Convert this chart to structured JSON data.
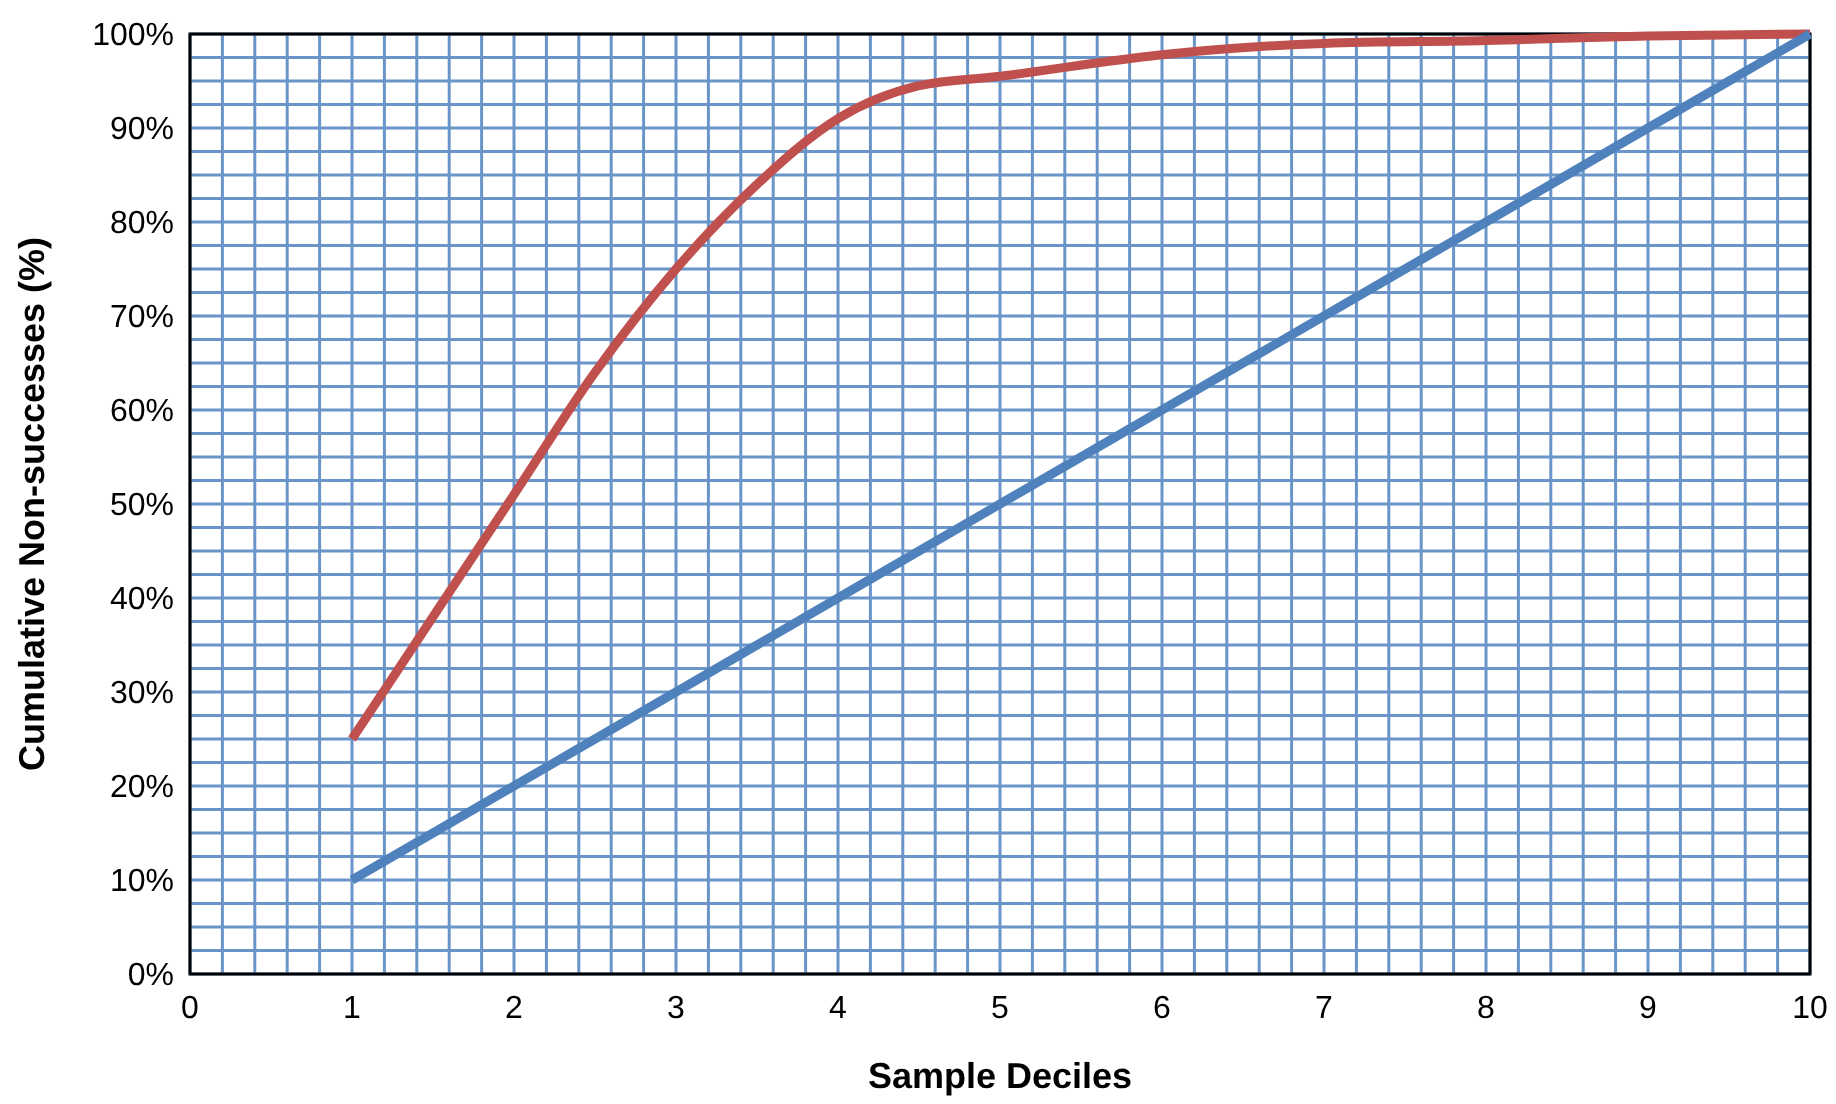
{
  "chart_data": {
    "type": "line",
    "xlabel": "Sample Deciles",
    "ylabel": "Cumulative Non-successes (%)",
    "xlim": [
      0,
      10
    ],
    "ylim": [
      0,
      100
    ],
    "xticks": [
      0,
      {
        "value": 0.2,
        "label": null
      },
      {
        "value": 0.4,
        "label": null
      },
      {
        "value": 0.6,
        "label": null
      },
      {
        "value": 0.8,
        "label": null
      },
      1,
      {
        "value": 1.2,
        "label": null
      },
      {
        "value": 1.4,
        "label": null
      },
      {
        "value": 1.6,
        "label": null
      },
      {
        "value": 1.8,
        "label": null
      },
      2,
      {
        "value": 2.2,
        "label": null
      },
      {
        "value": 2.4,
        "label": null
      },
      {
        "value": 2.6,
        "label": null
      },
      {
        "value": 2.8,
        "label": null
      },
      3,
      {
        "value": 3.2,
        "label": null
      },
      {
        "value": 3.4,
        "label": null
      },
      {
        "value": 3.6,
        "label": null
      },
      {
        "value": 3.8,
        "label": null
      },
      4,
      {
        "value": 4.2,
        "label": null
      },
      {
        "value": 4.4,
        "label": null
      },
      {
        "value": 4.6,
        "label": null
      },
      {
        "value": 4.8,
        "label": null
      },
      5,
      {
        "value": 5.2,
        "label": null
      },
      {
        "value": 5.4,
        "label": null
      },
      {
        "value": 5.6,
        "label": null
      },
      {
        "value": 5.8,
        "label": null
      },
      6,
      {
        "value": 6.2,
        "label": null
      },
      {
        "value": 6.4,
        "label": null
      },
      {
        "value": 6.6,
        "label": null
      },
      {
        "value": 6.8,
        "label": null
      },
      7,
      {
        "value": 7.2,
        "label": null
      },
      {
        "value": 7.4,
        "label": null
      },
      {
        "value": 7.6,
        "label": null
      },
      {
        "value": 7.8,
        "label": null
      },
      8,
      {
        "value": 8.2,
        "label": null
      },
      {
        "value": 8.4,
        "label": null
      },
      {
        "value": 8.6,
        "label": null
      },
      {
        "value": 8.8,
        "label": null
      },
      9,
      {
        "value": 9.2,
        "label": null
      },
      {
        "value": 9.4,
        "label": null
      },
      {
        "value": 9.6,
        "label": null
      },
      {
        "value": 9.8,
        "label": null
      },
      10
    ],
    "yticks": [
      {
        "value": 0,
        "label": "0%"
      },
      {
        "value": 2.5,
        "label": null
      },
      {
        "value": 5,
        "label": null
      },
      {
        "value": 7.5,
        "label": null
      },
      {
        "value": 10,
        "label": "10%"
      },
      {
        "value": 12.5,
        "label": null
      },
      {
        "value": 15,
        "label": null
      },
      {
        "value": 17.5,
        "label": null
      },
      {
        "value": 20,
        "label": "20%"
      },
      {
        "value": 22.5,
        "label": null
      },
      {
        "value": 25,
        "label": null
      },
      {
        "value": 27.5,
        "label": null
      },
      {
        "value": 30,
        "label": "30%"
      },
      {
        "value": 32.5,
        "label": null
      },
      {
        "value": 35,
        "label": null
      },
      {
        "value": 37.5,
        "label": null
      },
      {
        "value": 40,
        "label": "40%"
      },
      {
        "value": 42.5,
        "label": null
      },
      {
        "value": 45,
        "label": null
      },
      {
        "value": 47.5,
        "label": null
      },
      {
        "value": 50,
        "label": "50%"
      },
      {
        "value": 52.5,
        "label": null
      },
      {
        "value": 55,
        "label": null
      },
      {
        "value": 57.5,
        "label": null
      },
      {
        "value": 60,
        "label": "60%"
      },
      {
        "value": 62.5,
        "label": null
      },
      {
        "value": 65,
        "label": null
      },
      {
        "value": 67.5,
        "label": null
      },
      {
        "value": 70,
        "label": "70%"
      },
      {
        "value": 72.5,
        "label": null
      },
      {
        "value": 75,
        "label": null
      },
      {
        "value": 77.5,
        "label": null
      },
      {
        "value": 80,
        "label": "80%"
      },
      {
        "value": 82.5,
        "label": null
      },
      {
        "value": 85,
        "label": null
      },
      {
        "value": 87.5,
        "label": null
      },
      {
        "value": 90,
        "label": "90%"
      },
      {
        "value": 92.5,
        "label": null
      },
      {
        "value": 95,
        "label": null
      },
      {
        "value": 97.5,
        "label": null
      },
      {
        "value": 100,
        "label": "100%"
      }
    ],
    "grid": true,
    "marker": "none",
    "line_style": "solid",
    "series": [
      {
        "color": "#c0504d",
        "x": [
          1,
          1.5,
          2,
          2.5,
          3,
          3.5,
          4,
          4.5,
          5,
          6,
          7,
          8,
          9,
          10
        ],
        "values": [
          25,
          38,
          51,
          64,
          75,
          84,
          91,
          94.5,
          95.5,
          97.8,
          99,
          99.3,
          99.8,
          100
        ]
      },
      {
        "color": "#4f81bd",
        "x": [
          1,
          2,
          3,
          4,
          5,
          6,
          7,
          8,
          9,
          10
        ],
        "values": [
          10,
          20,
          30,
          40,
          50,
          60,
          70,
          80,
          90,
          100
        ]
      }
    ]
  }
}
